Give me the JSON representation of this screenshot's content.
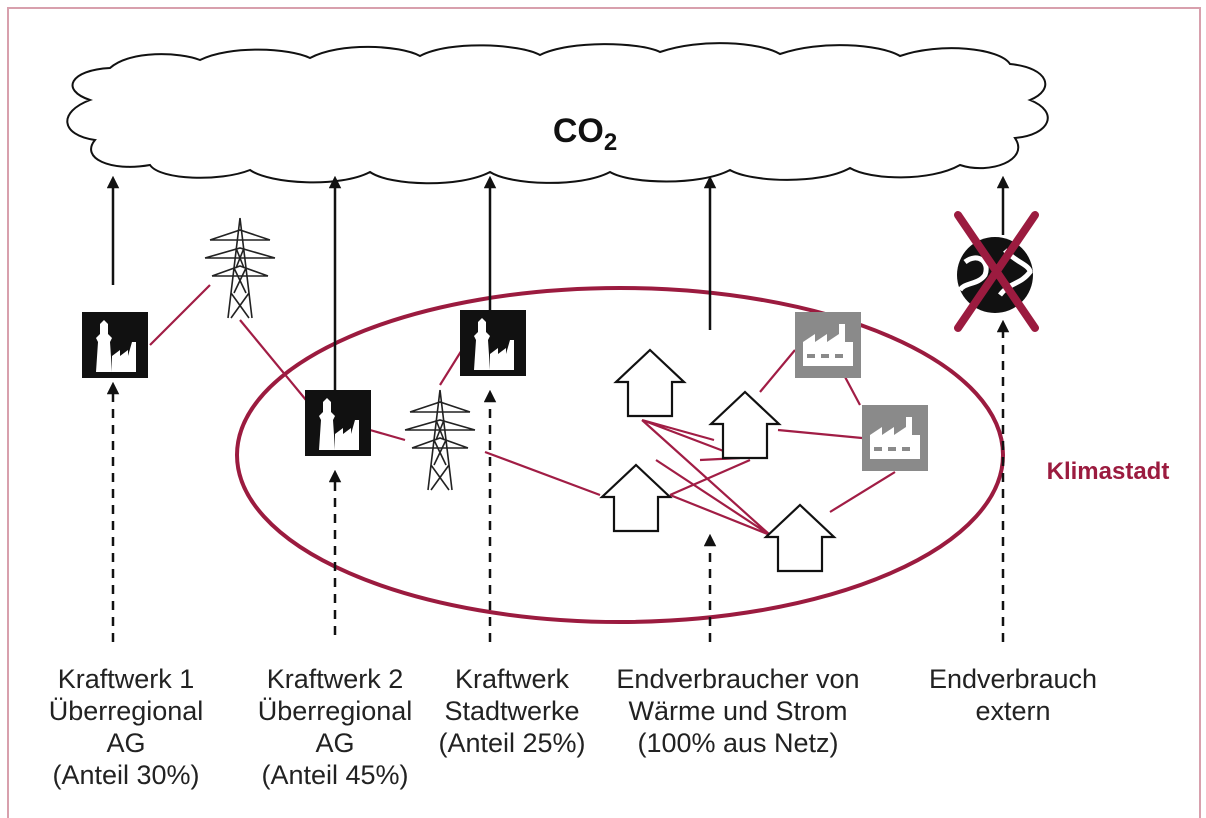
{
  "cloud": {
    "label": "CO",
    "subscript": "2"
  },
  "region": {
    "label": "Klimastadt"
  },
  "columns": [
    {
      "lines": [
        "Kraftwerk 1",
        "Überregional",
        "AG",
        "(Anteil 30%)"
      ]
    },
    {
      "lines": [
        "Kraftwerk 2",
        "Überregional",
        "AG",
        "(Anteil 45%)"
      ]
    },
    {
      "lines": [
        "Kraftwerk",
        "Stadtwerke",
        "(Anteil 25%)"
      ]
    },
    {
      "lines": [
        "Endverbraucher von",
        "Wärme und Strom",
        "(100% aus Netz)"
      ]
    },
    {
      "lines": [
        "Endverbrauch",
        "extern"
      ]
    }
  ]
}
